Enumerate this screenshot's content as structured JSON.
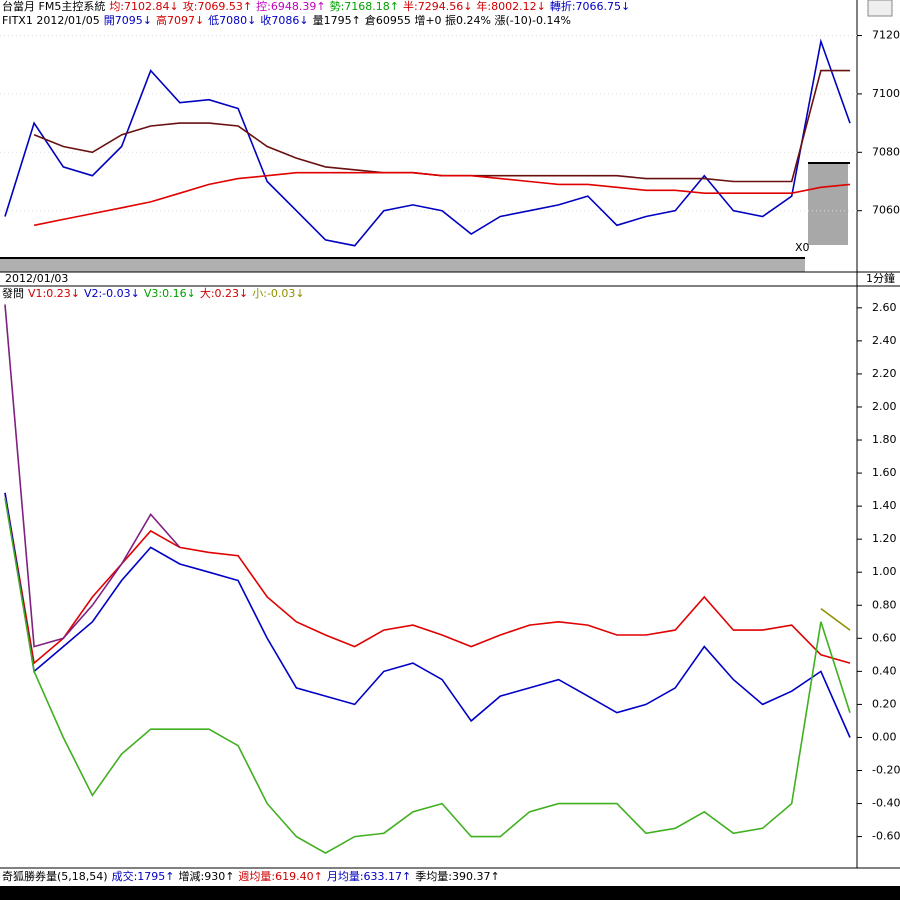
{
  "chart_data": [
    {
      "type": "line",
      "header": [
        {
          "text": "台當月 FM5主控系統",
          "color": "#000000"
        },
        {
          "text": "均:7102.84↓",
          "color": "#d00000"
        },
        {
          "text": "攻:7069.53↑",
          "color": "#d00000"
        },
        {
          "text": "控:6948.39↑",
          "color": "#c000c0"
        },
        {
          "text": "勢:7168.18↑",
          "color": "#00a000"
        },
        {
          "text": "半:7294.56↓",
          "color": "#d00000"
        },
        {
          "text": "年:8002.12↓",
          "color": "#d00000"
        },
        {
          "text": "轉折:7066.75↓",
          "color": "#0000c0"
        }
      ],
      "subheader": [
        {
          "text": "FITX1 2012/01/05",
          "color": "#000000"
        },
        {
          "text": "開7095↓",
          "color": "#0000c0"
        },
        {
          "text": "高7097↓",
          "color": "#d00000"
        },
        {
          "text": "低7080↓",
          "color": "#0000c0"
        },
        {
          "text": "收7086↓",
          "color": "#0000c0"
        },
        {
          "text": "量1795↑",
          "color": "#000000"
        },
        {
          "text": "倉60955 增+0 振0.24% 漲(-10)-0.14%",
          "color": "#000000"
        }
      ],
      "date_label": "2012/01/03",
      "period_label": "1分鐘",
      "marker_label": "X0",
      "ylim": [
        7039,
        7126
      ],
      "yticks": [
        7060,
        7080,
        7100,
        7120
      ],
      "series": [
        {
          "color": "#0000c0",
          "values": [
            7058,
            7090,
            7075,
            7072,
            7082,
            7108,
            7097,
            7098,
            7095,
            7070,
            7060,
            7050,
            7048,
            7060,
            7062,
            7060,
            7052,
            7058,
            7060,
            7062,
            7065,
            7055,
            7058,
            7060,
            7072,
            7060,
            7058,
            7065,
            7118,
            7090
          ]
        },
        {
          "color": "#6a1010",
          "values": [
            null,
            7086,
            7082,
            7080,
            7086,
            7089,
            7090,
            7090,
            7089,
            7082,
            7078,
            7075,
            7074,
            7073,
            7073,
            7072,
            7072,
            7072,
            7072,
            7072,
            7072,
            7072,
            7071,
            7071,
            7071,
            7070,
            7070,
            7070,
            7108,
            7108
          ]
        },
        {
          "color": "#e00000",
          "values": [
            null,
            7055,
            7057,
            7059,
            7061,
            7063,
            7066,
            7069,
            7071,
            7072,
            7073,
            7073,
            7073,
            7073,
            7073,
            7072,
            7072,
            7071,
            7070,
            7069,
            7069,
            7068,
            7067,
            7067,
            7066,
            7066,
            7066,
            7066,
            7068,
            7069
          ]
        }
      ]
    },
    {
      "type": "line",
      "header": [
        {
          "text": "發問",
          "color": "#000000"
        },
        {
          "text": "V1:0.23↓",
          "color": "#d00000"
        },
        {
          "text": "V2:-0.03↓",
          "color": "#0000c0"
        },
        {
          "text": "V3:0.16↓",
          "color": "#00a000"
        },
        {
          "text": "大:0.23↓",
          "color": "#d00000"
        },
        {
          "text": "小:-0.03↓",
          "color": "#909000"
        }
      ],
      "footer": [
        {
          "text": "奇狐勝券量(5,18,54)",
          "color": "#000000"
        },
        {
          "text": "成交:1795↑",
          "color": "#0000c0"
        },
        {
          "text": "增減:930↑",
          "color": "#000000"
        },
        {
          "text": "週均量:619.40↑",
          "color": "#d00000"
        },
        {
          "text": "月均量:633.17↑",
          "color": "#0000c0"
        },
        {
          "text": "季均量:390.37↑",
          "color": "#000000"
        }
      ],
      "ylim": [
        -0.79,
        2.72
      ],
      "yticks": [
        {
          "value": -0.6,
          "label": "-0.60"
        },
        {
          "value": -0.4,
          "label": "-0.40"
        },
        {
          "value": -0.2,
          "label": "-0.20"
        },
        {
          "value": 0,
          "label": "0.00"
        },
        {
          "value": 0.2,
          "label": "0.20"
        },
        {
          "value": 0.4,
          "label": "0.40"
        },
        {
          "value": 0.6,
          "label": "0.60"
        },
        {
          "value": 0.8,
          "label": "0.80"
        },
        {
          "value": 1,
          "label": "1.00"
        },
        {
          "value": 1.2,
          "label": "1.20"
        },
        {
          "value": 1.4,
          "label": "1.40"
        },
        {
          "value": 1.6,
          "label": "1.60"
        },
        {
          "value": 1.8,
          "label": "1.80"
        },
        {
          "value": 2,
          "label": "2.00"
        },
        {
          "value": 2.2,
          "label": "2.20"
        },
        {
          "value": 2.4,
          "label": "2.40"
        },
        {
          "value": 2.6,
          "label": "2.60"
        }
      ],
      "series": [
        {
          "color": "#e00000",
          "values": [
            1.48,
            0.45,
            0.6,
            0.85,
            1.05,
            1.25,
            1.15,
            1.12,
            1.1,
            0.85,
            0.7,
            0.62,
            0.55,
            0.65,
            0.68,
            0.62,
            0.55,
            0.62,
            0.68,
            0.7,
            0.68,
            0.62,
            0.62,
            0.65,
            0.85,
            0.65,
            0.65,
            0.68,
            0.5,
            0.45
          ]
        },
        {
          "color": "#0000c8",
          "values": [
            1.48,
            0.4,
            0.55,
            0.7,
            0.95,
            1.15,
            1.05,
            1.0,
            0.95,
            0.6,
            0.3,
            0.25,
            0.2,
            0.4,
            0.45,
            0.35,
            0.1,
            0.25,
            0.3,
            0.35,
            0.25,
            0.15,
            0.2,
            0.3,
            0.55,
            0.35,
            0.2,
            0.28,
            0.4,
            0.0
          ]
        },
        {
          "color": "#40b020",
          "values": [
            1.45,
            0.4,
            0.0,
            -0.35,
            -0.1,
            0.05,
            0.05,
            0.05,
            -0.05,
            -0.4,
            -0.6,
            -0.7,
            -0.6,
            -0.58,
            -0.45,
            -0.4,
            -0.6,
            -0.6,
            -0.45,
            -0.4,
            -0.4,
            -0.4,
            -0.58,
            -0.55,
            -0.45,
            -0.58,
            -0.55,
            -0.4,
            0.7,
            0.15
          ]
        },
        {
          "color": "#802080",
          "values": [
            2.62,
            0.55,
            0.6,
            0.8,
            1.05,
            1.35,
            1.15,
            null,
            null,
            null,
            null,
            null,
            null,
            null,
            null,
            null,
            null,
            null,
            null,
            null,
            null,
            null,
            null,
            null,
            null,
            null,
            null,
            null,
            null,
            null
          ]
        },
        {
          "color": "#909000",
          "values": [
            null,
            null,
            null,
            null,
            null,
            null,
            null,
            null,
            null,
            null,
            null,
            null,
            null,
            null,
            null,
            null,
            null,
            null,
            null,
            null,
            null,
            null,
            null,
            null,
            null,
            null,
            null,
            null,
            0.78,
            0.65
          ]
        }
      ]
    }
  ]
}
